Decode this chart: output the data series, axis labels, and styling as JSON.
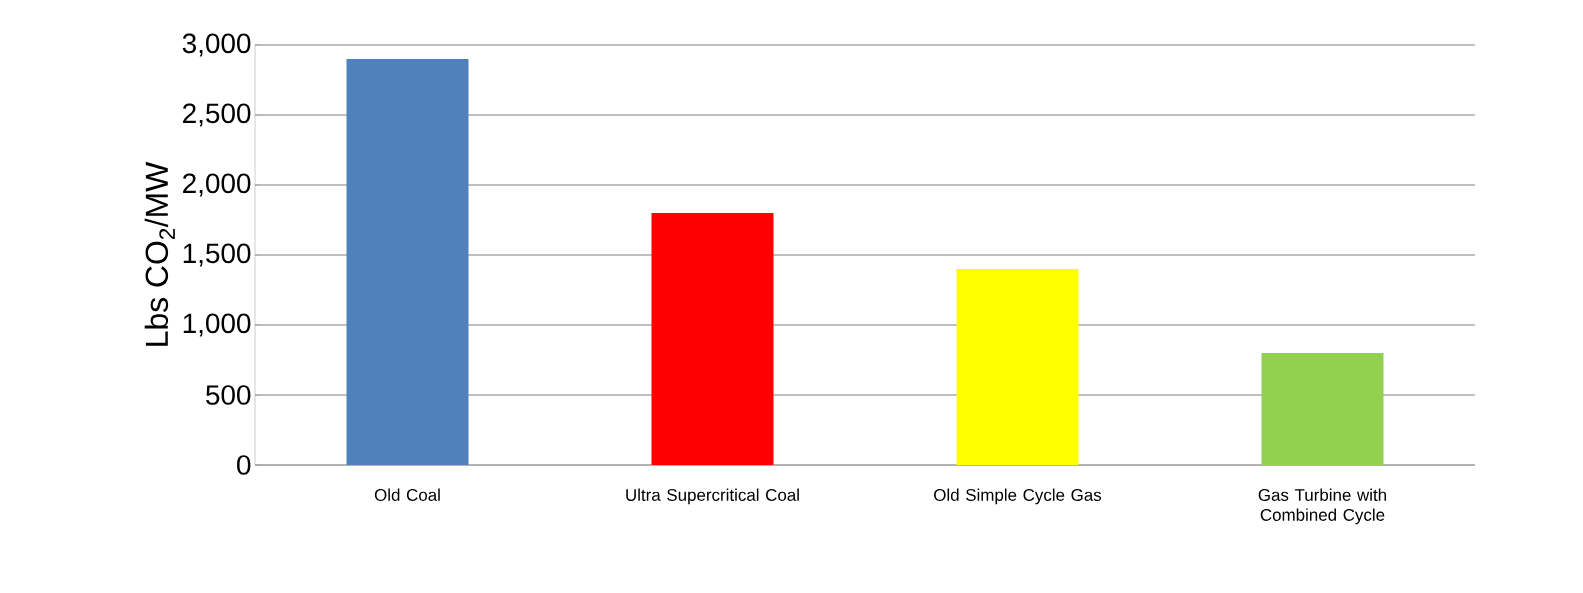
{
  "chart_data": {
    "type": "bar",
    "ylabel": "Lbs CO$_{2}$/MW",
    "categories": [
      "Old Coal",
      "Ultra Supercritical Coal",
      "Old Simple Cycle Gas",
      "Gas Turbine with Combined Cycle"
    ],
    "values": [
      2900,
      1800,
      1400,
      800
    ],
    "colors": [
      "#4f81bd",
      "#ff0000",
      "#ffff00",
      "#92d050"
    ],
    "ylim": [
      0,
      3000
    ],
    "yticks": [
      {
        "value": 0,
        "label": "0"
      },
      {
        "value": 500,
        "label": "500"
      },
      {
        "value": 1000,
        "label": "1,000"
      },
      {
        "value": 1500,
        "label": "1,500"
      },
      {
        "value": 2000,
        "label": "2,000"
      },
      {
        "value": 2500,
        "label": "2,500"
      },
      {
        "value": 3000,
        "label": "3,000"
      }
    ],
    "grid": "y"
  }
}
